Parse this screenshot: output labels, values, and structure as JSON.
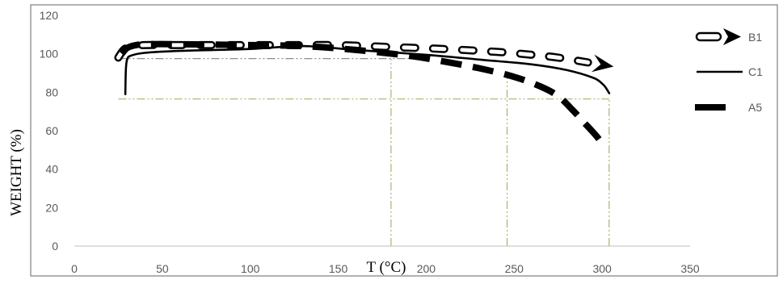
{
  "chart_data": {
    "type": "line",
    "title": "",
    "xlabel": "T (°C)",
    "ylabel": "WEIGHT (%)",
    "xlim": [
      0,
      350
    ],
    "ylim": [
      0,
      120
    ],
    "x_ticks": [
      0,
      50,
      100,
      150,
      200,
      250,
      300,
      350
    ],
    "y_ticks": [
      0,
      20,
      40,
      60,
      80,
      100,
      120
    ],
    "grid": false,
    "legend_position": "right",
    "series": [
      {
        "name": "B1",
        "style": "hollow-dashed-arrow",
        "color": "#000000",
        "x": [
          25,
          28,
          32,
          40,
          60,
          90,
          120,
          150,
          180,
          210,
          240,
          260,
          275,
          292
        ],
        "y": [
          98,
          102,
          104,
          104.5,
          104.5,
          104.5,
          104.5,
          104.5,
          103.5,
          102.5,
          101,
          99.5,
          98,
          95.5
        ]
      },
      {
        "name": "C1",
        "style": "solid",
        "color": "#000000",
        "x": [
          29,
          29.3,
          30,
          32,
          40,
          60,
          100,
          130,
          160,
          200,
          230,
          260,
          280,
          295,
          300,
          302,
          304
        ],
        "y": [
          79,
          92,
          97,
          99,
          100.5,
          101.5,
          102.5,
          104,
          102,
          99.5,
          97,
          94.5,
          91.5,
          87.5,
          84.5,
          82.5,
          79.5
        ]
      },
      {
        "name": "A5",
        "style": "thick-dashed",
        "color": "#000000",
        "x": [
          27,
          30,
          35,
          42,
          60,
          100,
          130,
          160,
          190,
          210,
          230,
          250,
          265,
          275,
          283,
          290,
          297,
          300
        ],
        "y": [
          100,
          103,
          104.5,
          105,
          105,
          104.5,
          104,
          102,
          99,
          96,
          92.5,
          88,
          83,
          78,
          71,
          64,
          57,
          53
        ]
      }
    ],
    "reference_lines": [
      {
        "type": "horizontal",
        "y": 97.5,
        "x_from": 25,
        "x_to": 200
      },
      {
        "type": "horizontal",
        "y": 76.5,
        "x_from": 25,
        "x_to": 304
      },
      {
        "type": "vertical",
        "x": 180,
        "y_from": 0,
        "y_to": 97.5
      },
      {
        "type": "vertical",
        "x": 246,
        "y_from": 0,
        "y_to": 92
      },
      {
        "type": "vertical",
        "x": 304,
        "y_from": 0,
        "y_to": 76.5
      }
    ]
  }
}
